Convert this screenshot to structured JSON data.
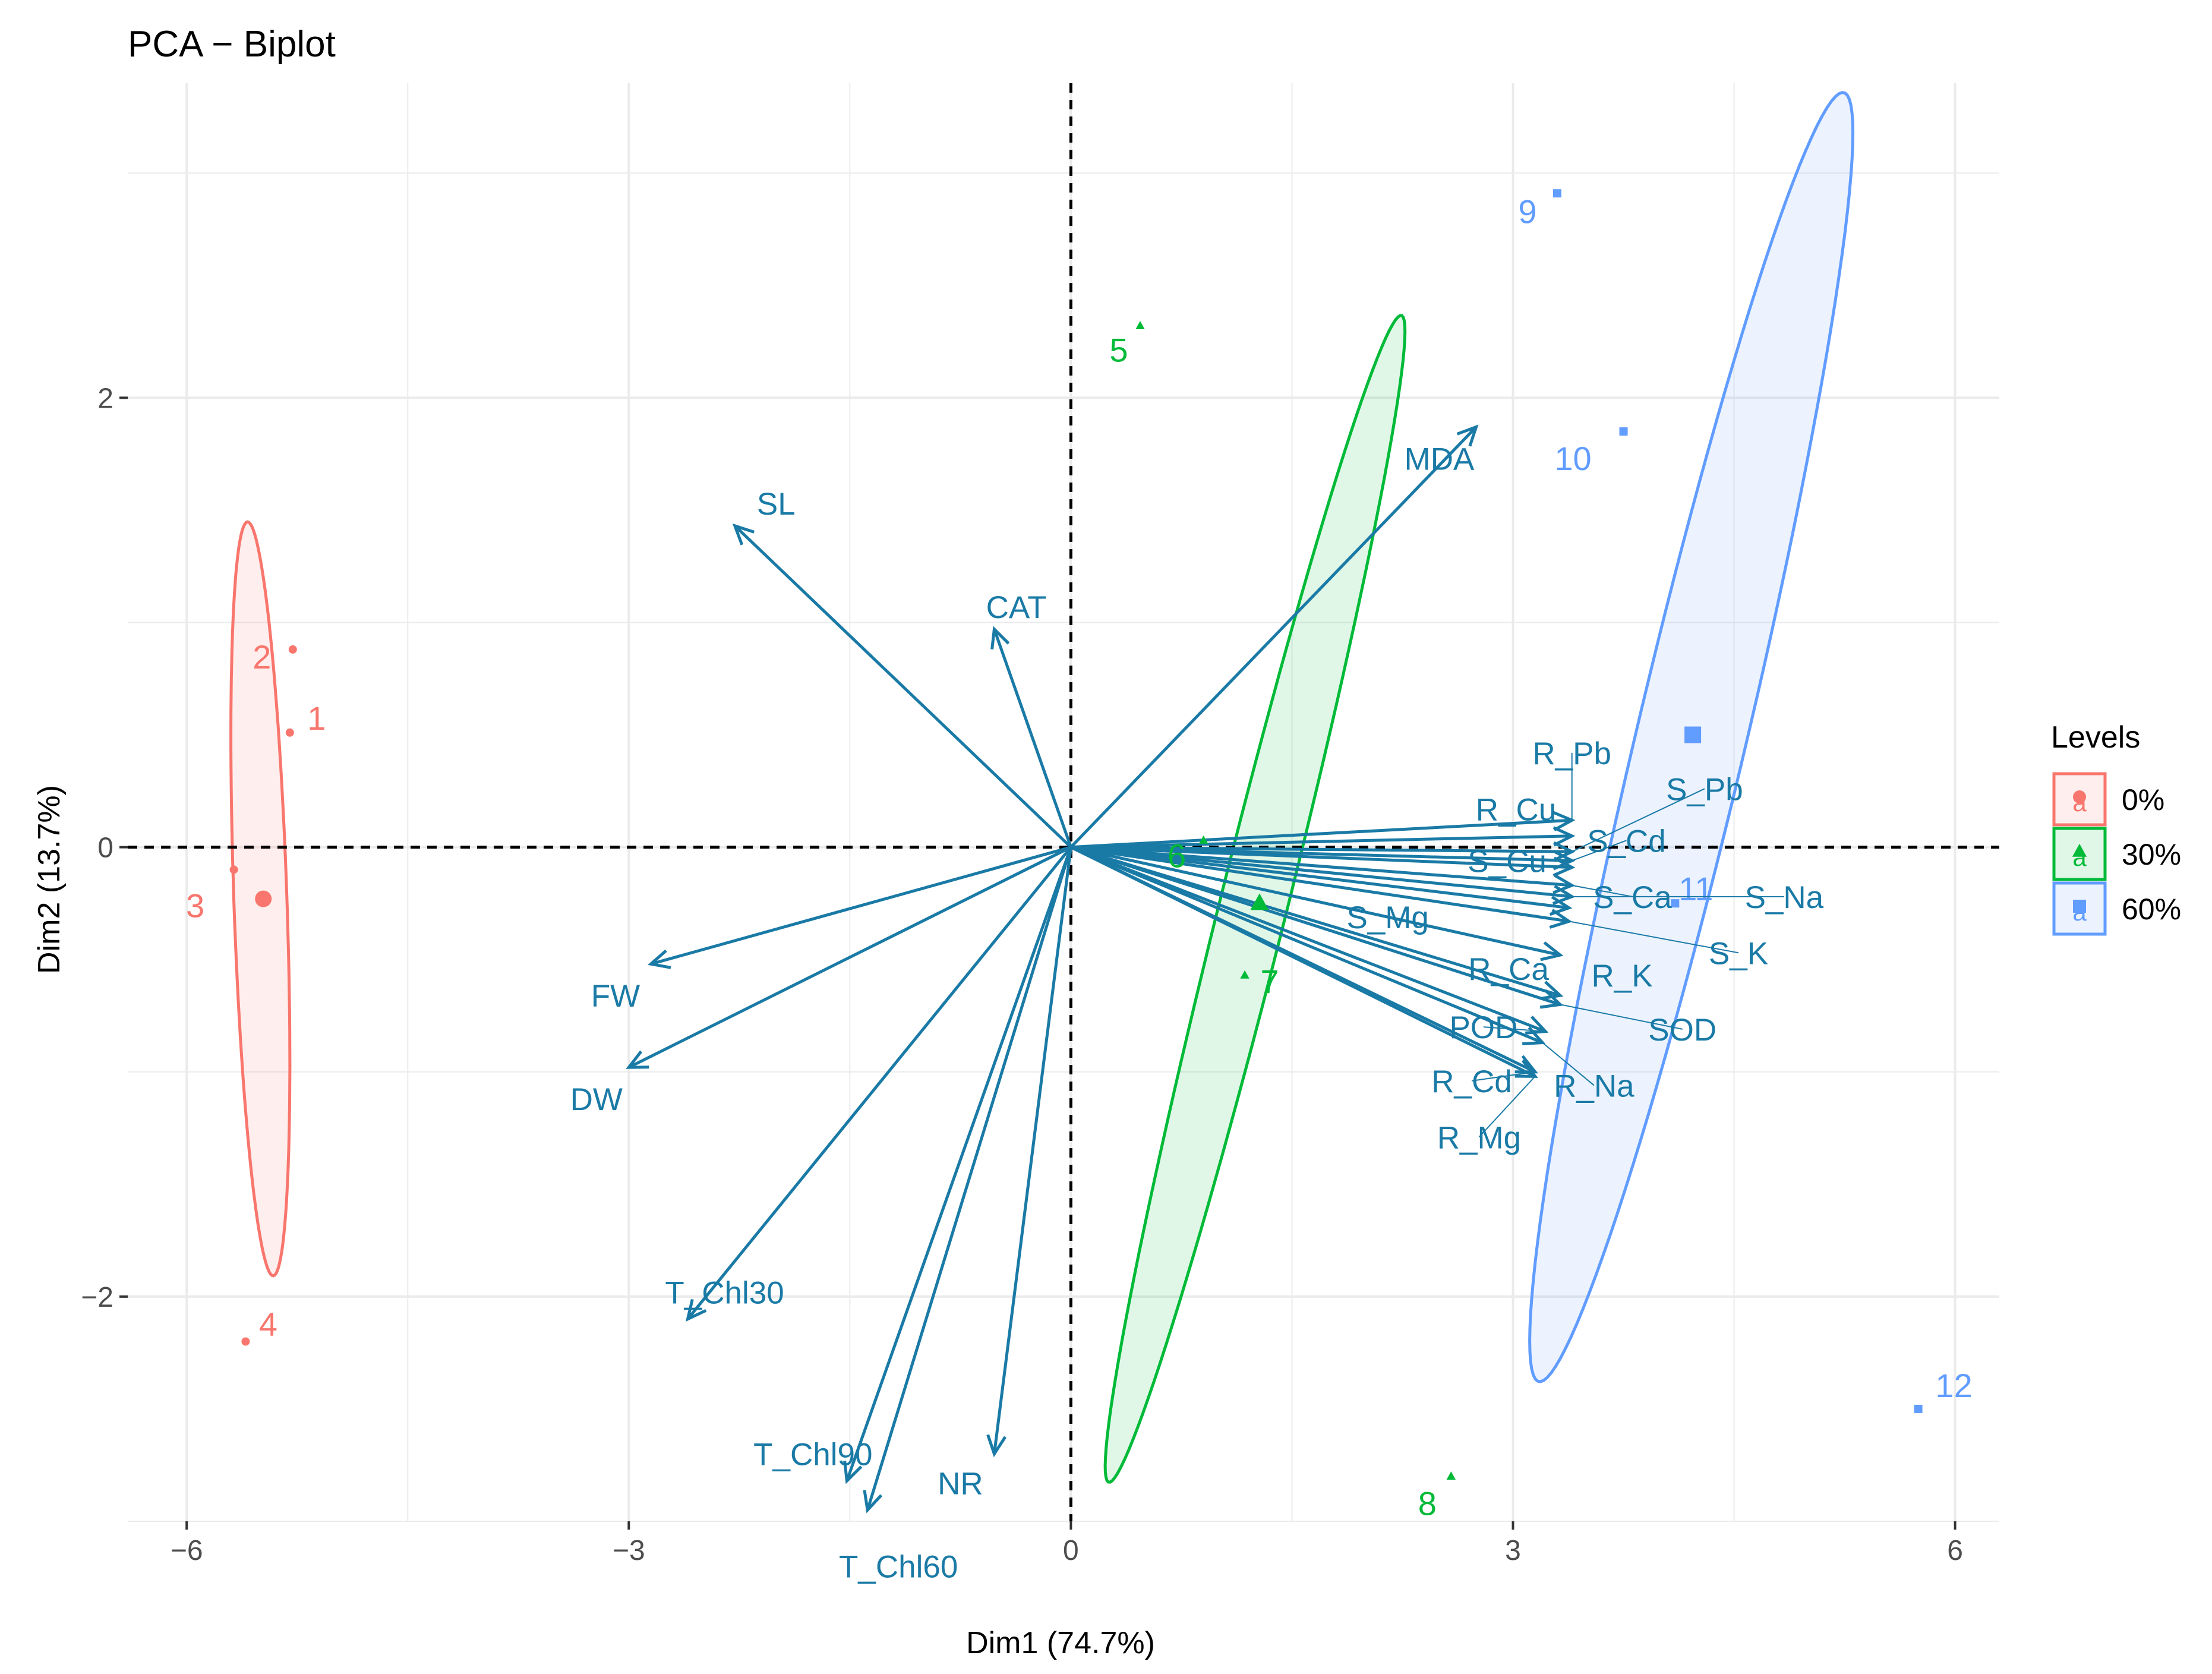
{
  "chart_data": {
    "type": "scatter",
    "title": "PCA − Biplot",
    "xlabel": "Dim1 (74.7%)",
    "ylabel": "Dim2 (13.7%)",
    "xlim": [
      -6.4,
      6.3
    ],
    "ylim": [
      -3.0,
      3.4
    ],
    "x_ticks": [
      {
        "value": -6,
        "label": "−6"
      },
      {
        "value": -3,
        "label": "−3"
      },
      {
        "value": 0,
        "label": "0"
      },
      {
        "value": 3,
        "label": "3"
      },
      {
        "value": 6,
        "label": "6"
      }
    ],
    "y_ticks": [
      {
        "value": -2,
        "label": "−2"
      },
      {
        "value": 0,
        "label": "0"
      },
      {
        "value": 2,
        "label": "2"
      }
    ],
    "minor_x": [
      -4.5,
      -1.5,
      1.5,
      4.5
    ],
    "minor_y": [
      -3,
      -1,
      1,
      3
    ],
    "colors": {
      "variables": "#1a7aa6",
      "zero": "#F8766D",
      "thirty": "#00BA38",
      "sixty": "#619CFF",
      "grid": "#ebebeb",
      "axis_text": "#4d4d4d"
    },
    "legend": {
      "title": "Levels",
      "position": "right",
      "entries": [
        {
          "label": "0%",
          "group": "zero",
          "shape": "circle",
          "key_letter": "a"
        },
        {
          "label": "30%",
          "group": "thirty",
          "shape": "triangle",
          "key_letter": "a"
        },
        {
          "label": "60%",
          "group": "sixty",
          "shape": "square",
          "key_letter": "a"
        }
      ]
    },
    "points": [
      {
        "label": "1",
        "x": -5.3,
        "y": 0.51,
        "group": "zero"
      },
      {
        "label": "2",
        "x": -5.28,
        "y": 0.88,
        "group": "zero"
      },
      {
        "label": "3",
        "x": -5.68,
        "y": -0.1,
        "group": "zero"
      },
      {
        "label": "4",
        "x": -5.6,
        "y": -2.2,
        "group": "zero"
      },
      {
        "label": "5",
        "x": 0.47,
        "y": 2.32,
        "group": "thirty"
      },
      {
        "label": "6",
        "x": 0.9,
        "y": 0.03,
        "group": "thirty"
      },
      {
        "label": "7",
        "x": 1.18,
        "y": -0.57,
        "group": "thirty"
      },
      {
        "label": "8",
        "x": 2.58,
        "y": -2.8,
        "group": "thirty"
      },
      {
        "label": "9",
        "x": 3.3,
        "y": 2.91,
        "group": "sixty"
      },
      {
        "label": "10",
        "x": 3.75,
        "y": 1.85,
        "group": "sixty"
      },
      {
        "label": "11",
        "x": 4.1,
        "y": -0.25,
        "group": "sixty"
      },
      {
        "label": "12",
        "x": 5.75,
        "y": -2.5,
        "group": "sixty"
      }
    ],
    "centroids": [
      {
        "group": "zero",
        "x": -5.48,
        "y": -0.23
      },
      {
        "group": "thirty",
        "x": 1.28,
        "y": -0.25
      },
      {
        "group": "sixty",
        "x": 4.22,
        "y": 0.5
      }
    ],
    "ellipses": [
      {
        "group": "zero",
        "cx": -5.5,
        "cy": -0.23,
        "rx": 0.18,
        "ry": 1.68,
        "angle_deg": 3
      },
      {
        "group": "thirty",
        "cx": 1.25,
        "cy": -0.23,
        "rx": 0.22,
        "ry": 2.78,
        "angle_deg": -21
      },
      {
        "group": "sixty",
        "cx": 4.21,
        "cy": 0.49,
        "rx": 0.36,
        "ry": 3.05,
        "angle_deg": -20
      }
    ],
    "variables": [
      {
        "name": "SL",
        "x": -2.28,
        "y": 1.43,
        "lx": -2.0,
        "ly": 1.53
      },
      {
        "name": "CAT",
        "x": -0.52,
        "y": 0.97,
        "lx": -0.37,
        "ly": 1.07
      },
      {
        "name": "MDA",
        "x": 2.75,
        "y": 1.87,
        "lx": 2.5,
        "ly": 1.73
      },
      {
        "name": "FW",
        "x": -2.85,
        "y": -0.52,
        "lx": -3.09,
        "ly": -0.66
      },
      {
        "name": "DW",
        "x": -3.0,
        "y": -0.98,
        "lx": -3.22,
        "ly": -1.12
      },
      {
        "name": "T_Chl30",
        "x": -2.6,
        "y": -2.1,
        "lx": -2.35,
        "ly": -1.98
      },
      {
        "name": "T_Chl90",
        "x": -1.52,
        "y": -2.82,
        "lx": -1.75,
        "ly": -2.7
      },
      {
        "name": "T_Chl60",
        "x": -1.38,
        "y": -2.95,
        "lx": -1.17,
        "ly": -3.2
      },
      {
        "name": "NR",
        "x": -0.52,
        "y": -2.7,
        "lx": -0.75,
        "ly": -2.83
      },
      {
        "name": "R_Pb",
        "x": 3.4,
        "y": 0.12,
        "lx": 3.4,
        "ly": 0.42,
        "leader": true
      },
      {
        "name": "R_Cu",
        "x": 3.4,
        "y": 0.05,
        "lx": 3.02,
        "ly": 0.17
      },
      {
        "name": "S_Pb",
        "x": 3.4,
        "y": -0.02,
        "lx": 4.3,
        "ly": 0.26,
        "leader": true
      },
      {
        "name": "S_Cd",
        "x": 3.4,
        "y": -0.06,
        "lx": 3.77,
        "ly": 0.03,
        "leader": true
      },
      {
        "name": "S_Cu",
        "x": 3.4,
        "y": -0.09,
        "lx": 2.96,
        "ly": -0.06
      },
      {
        "name": "S_Ca",
        "x": 3.4,
        "y": -0.17,
        "lx": 3.81,
        "ly": -0.22,
        "leader": true
      },
      {
        "name": "S_Na",
        "x": 3.4,
        "y": -0.22,
        "lx": 4.84,
        "ly": -0.22,
        "leader": true
      },
      {
        "name": "S_Mg",
        "x": 3.38,
        "y": -0.27,
        "lx": 2.15,
        "ly": -0.31
      },
      {
        "name": "S_K",
        "x": 3.38,
        "y": -0.33,
        "lx": 4.53,
        "ly": -0.47,
        "leader": true
      },
      {
        "name": "R_Ca",
        "x": 3.32,
        "y": -0.48,
        "lx": 2.97,
        "ly": -0.54
      },
      {
        "name": "R_K",
        "x": 3.32,
        "y": -0.66,
        "lx": 3.74,
        "ly": -0.57
      },
      {
        "name": "SOD",
        "x": 3.32,
        "y": -0.7,
        "lx": 4.15,
        "ly": -0.81,
        "leader": true
      },
      {
        "name": "POD",
        "x": 3.22,
        "y": -0.82,
        "lx": 2.8,
        "ly": -0.8,
        "leader": true
      },
      {
        "name": "R_Na",
        "x": 3.2,
        "y": -0.87,
        "lx": 3.55,
        "ly": -1.06,
        "leader": true
      },
      {
        "name": "R_Cd",
        "x": 3.15,
        "y": -1.0,
        "lx": 2.72,
        "ly": -1.04,
        "leader": true
      },
      {
        "name": "R_Mg",
        "x": 3.15,
        "y": -1.02,
        "lx": 2.77,
        "ly": -1.29,
        "leader": true
      }
    ]
  }
}
